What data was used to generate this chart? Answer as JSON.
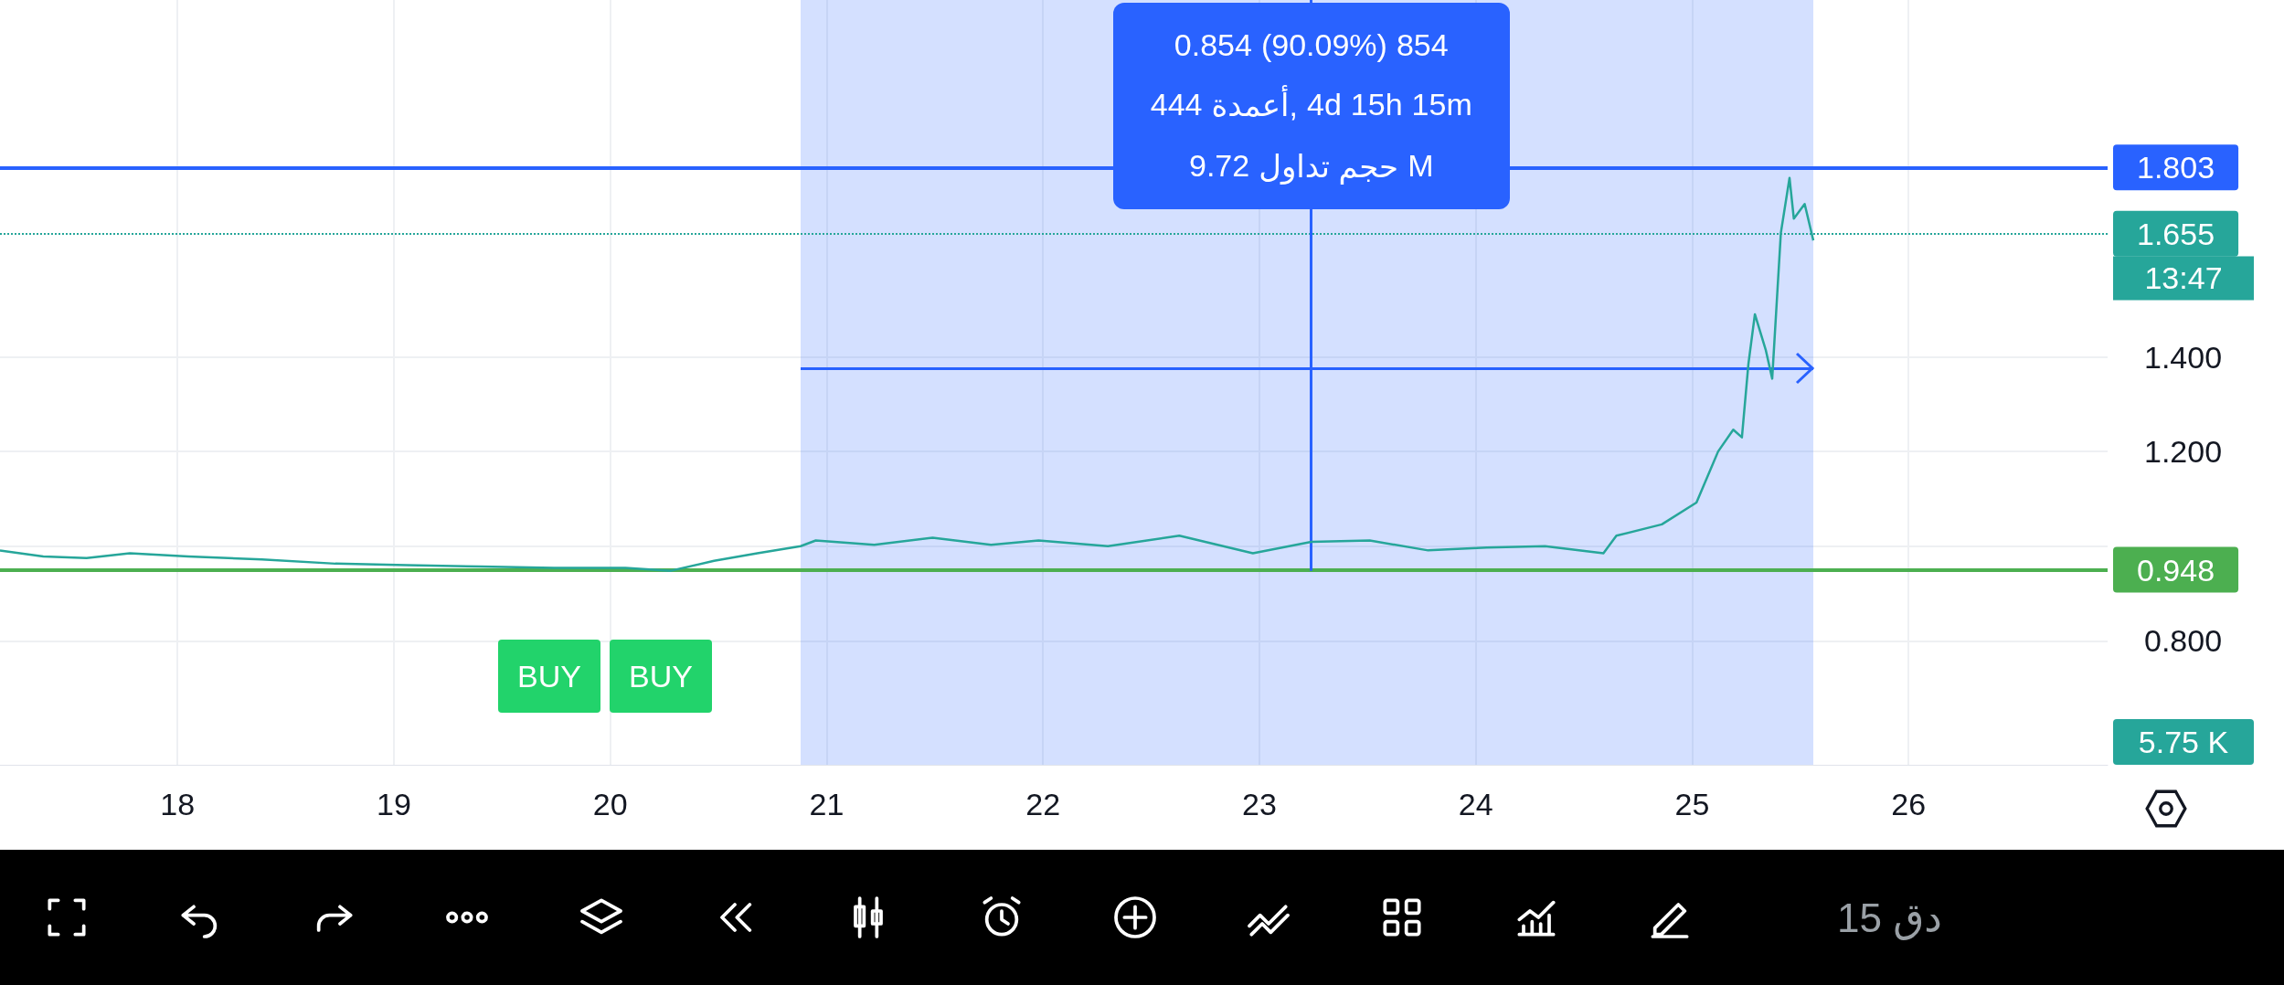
{
  "chart_data": {
    "type": "line",
    "x": [
      17.18,
      17.38,
      17.58,
      17.78,
      18.05,
      18.39,
      18.73,
      19.06,
      19.4,
      19.74,
      20.07,
      20.28,
      20.48,
      20.68,
      20.88,
      20.95,
      21.22,
      21.49,
      21.76,
      21.98,
      22.3,
      22.63,
      22.97,
      23.24,
      23.51,
      23.78,
      24.05,
      24.32,
      24.59,
      24.65,
      24.86,
      25.02,
      25.12,
      25.19,
      25.23,
      25.26,
      25.29,
      25.34,
      25.37,
      25.41,
      25.45,
      25.47,
      25.52,
      25.56
    ],
    "series": [
      {
        "color": "#26a69a",
        "values": [
          0.991,
          0.978,
          0.975,
          0.985,
          0.978,
          0.972,
          0.963,
          0.96,
          0.957,
          0.954,
          0.954,
          0.948,
          0.969,
          0.985,
          1.0,
          1.012,
          1.003,
          1.018,
          1.003,
          1.012,
          1.0,
          1.022,
          0.985,
          1.009,
          1.012,
          0.991,
          0.997,
          1.0,
          0.985,
          1.022,
          1.046,
          1.092,
          1.2,
          1.246,
          1.23,
          1.385,
          1.49,
          1.415,
          1.354,
          1.662,
          1.778,
          1.692,
          1.723,
          1.646
        ]
      }
    ],
    "xlim": [
      17.18,
      26.92
    ],
    "xticks": [
      18,
      19,
      20,
      21,
      22,
      23,
      24,
      25,
      26
    ],
    "ylim": [
      0.538,
      2.154
    ],
    "yticks": [
      {
        "value": 0.8,
        "label": "0.800"
      },
      {
        "value": 1.0,
        "label": null
      },
      {
        "value": 1.2,
        "label": "1.200"
      },
      {
        "value": 1.4,
        "label": "1.400"
      }
    ],
    "grid": true,
    "ref_lines": [
      {
        "axis": "y",
        "value": 1.803,
        "label": "1.803",
        "color": "#2962ff",
        "line_style": "solid"
      },
      {
        "axis": "y",
        "value": 1.655,
        "label": "1.655",
        "color": "#26a69a",
        "line_style": "dotted"
      },
      {
        "axis": "y",
        "value": 0.948,
        "label": "0.948",
        "color": "#4caf50",
        "line_style": "solid"
      },
      {
        "axis": "x",
        "value": 23.24,
        "color": "#2962ff",
        "line_style": "solid"
      },
      {
        "axis": "y",
        "value": 1.3755,
        "color": "#2962ff",
        "line_style": "solid"
      }
    ],
    "bands": [
      {
        "axis": "x",
        "from": 20.88,
        "to": 25.56,
        "color": "#2962ff"
      }
    ],
    "annotations": [
      "0.854 (90.09%) 854",
      "444 أعمدة, 4d 15h 15m",
      {
        "text": "9.72 حجم تداول M",
        "x": 23.24,
        "y": 1.712
      },
      "13:47",
      "5.75 K",
      "15 دق",
      "BUY",
      "BUY"
    ]
  }
}
